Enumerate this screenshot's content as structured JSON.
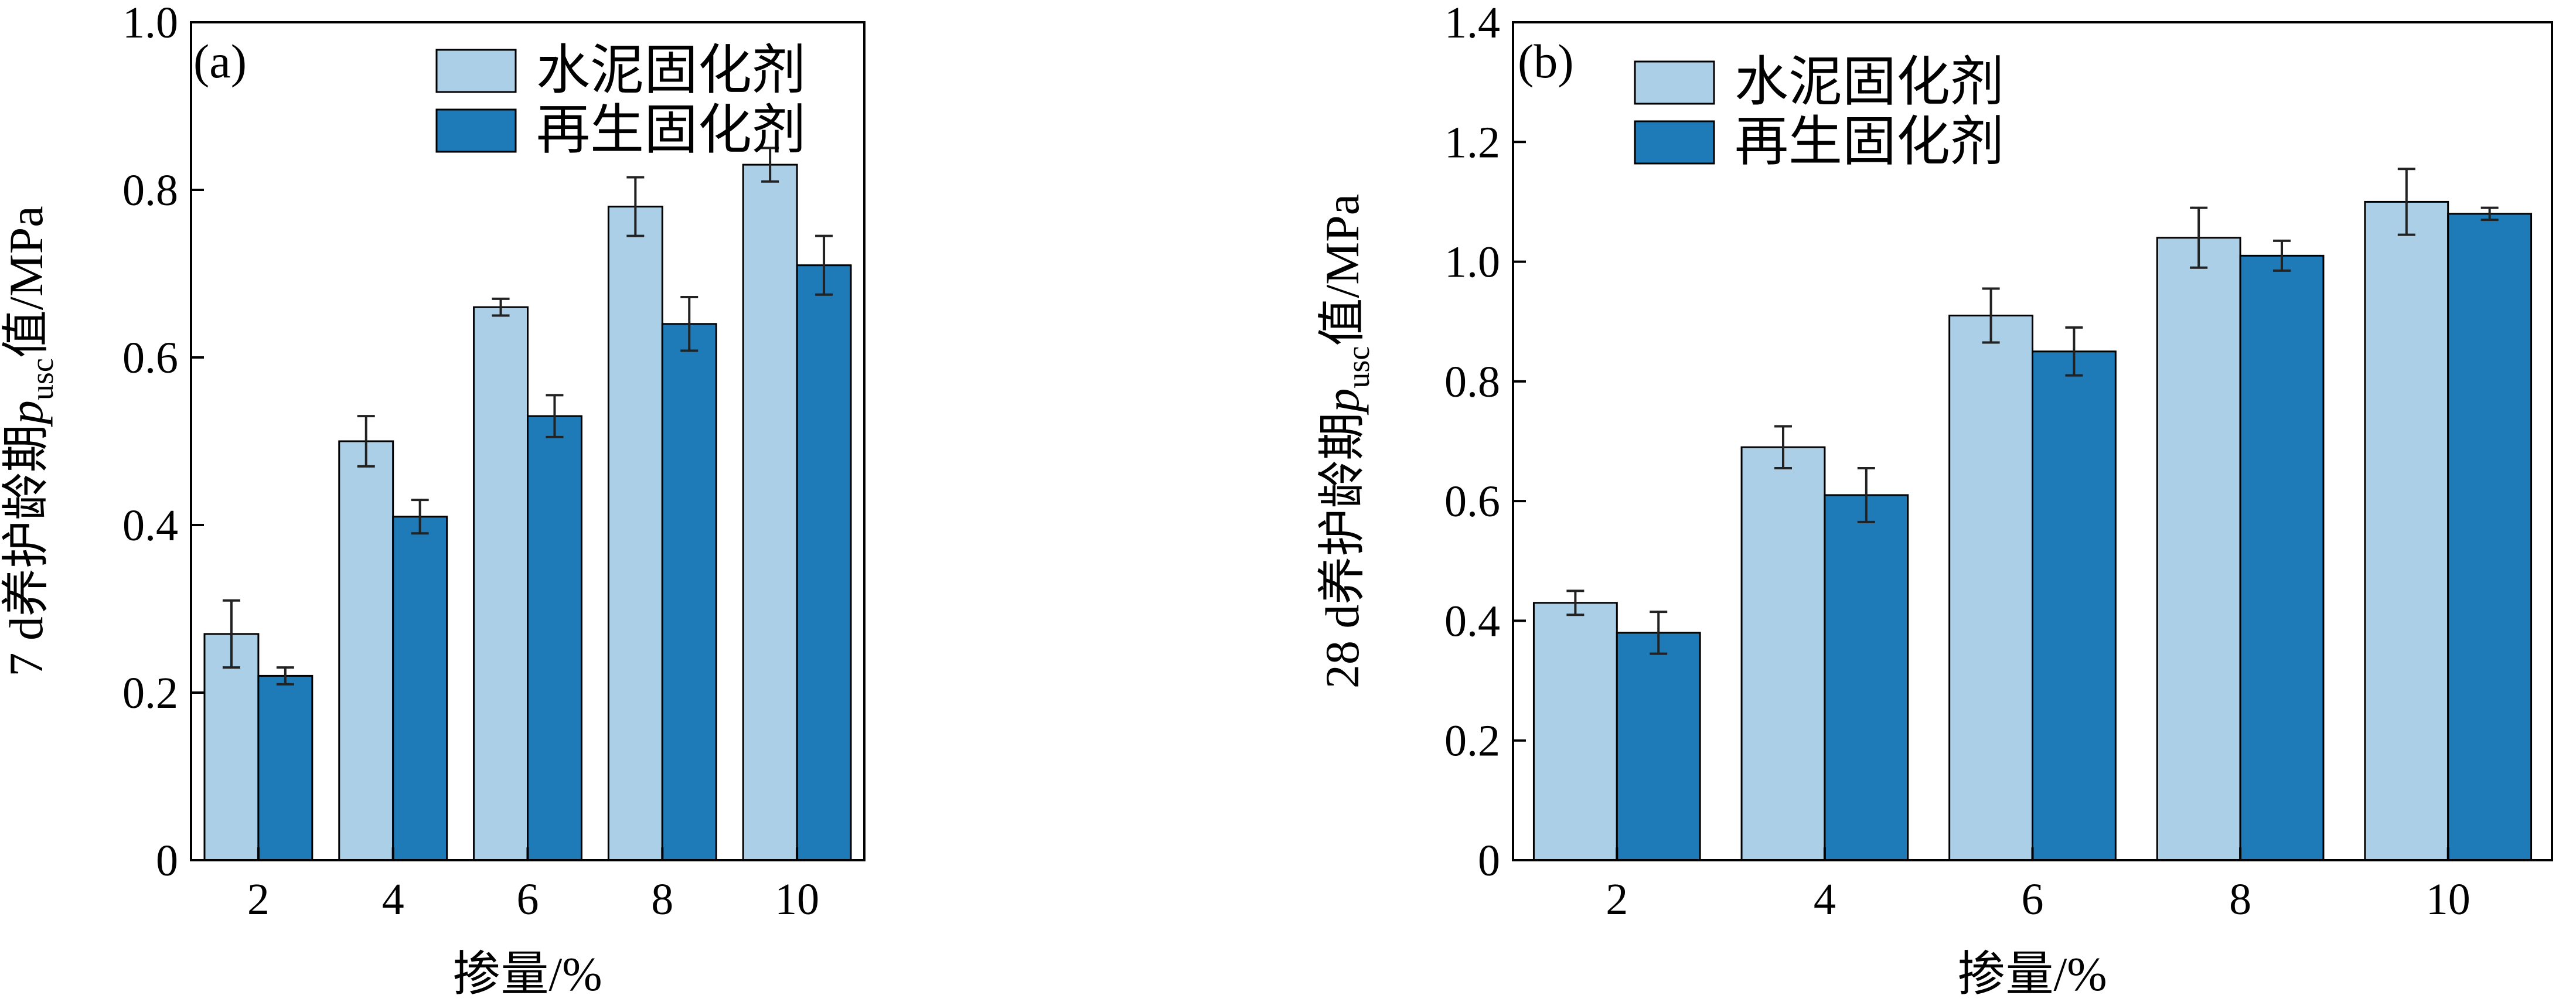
{
  "colors": {
    "series1": "#aacfe6",
    "series2": "#1f7ab8",
    "axis": "#000000",
    "errorbar": "#222222"
  },
  "chart_data": [
    {
      "type": "bar",
      "panel": "(a)",
      "categories": [
        "2",
        "4",
        "6",
        "8",
        "10"
      ],
      "ylim": [
        0,
        1.0
      ],
      "yticks": [
        "0",
        "0.2",
        "0.4",
        "0.6",
        "0.8",
        "1.0"
      ],
      "xlabel": "掺量/%",
      "ylabel": {
        "pre": "7 d养护龄期",
        "var": "p",
        "sub": "usc",
        "post": "值/MPa"
      },
      "legend_position": "top-center",
      "grid": false,
      "series": [
        {
          "name": "水泥固化剂",
          "values": [
            0.27,
            0.5,
            0.66,
            0.78,
            0.83
          ],
          "errors": [
            0.04,
            0.03,
            0.01,
            0.035,
            0.02
          ]
        },
        {
          "name": "再生固化剂",
          "values": [
            0.22,
            0.41,
            0.53,
            0.64,
            0.71
          ],
          "errors": [
            0.01,
            0.02,
            0.025,
            0.032,
            0.035
          ]
        }
      ]
    },
    {
      "type": "bar",
      "panel": "(b)",
      "categories": [
        "2",
        "4",
        "6",
        "8",
        "10"
      ],
      "ylim": [
        0,
        1.4
      ],
      "yticks": [
        "0",
        "0.2",
        "0.4",
        "0.6",
        "0.8",
        "1.0",
        "1.2",
        "1.4"
      ],
      "xlabel": "掺量/%",
      "ylabel": {
        "pre": "28 d养护龄期",
        "var": "p",
        "sub": "usc",
        "post": "值/MPa"
      },
      "legend_position": "top-center",
      "grid": false,
      "series": [
        {
          "name": "水泥固化剂",
          "values": [
            0.43,
            0.69,
            0.91,
            1.04,
            1.1
          ],
          "errors": [
            0.02,
            0.035,
            0.045,
            0.05,
            0.055
          ]
        },
        {
          "name": "再生固化剂",
          "values": [
            0.38,
            0.61,
            0.85,
            1.01,
            1.08
          ],
          "errors": [
            0.035,
            0.045,
            0.04,
            0.025,
            0.01
          ]
        }
      ]
    }
  ]
}
